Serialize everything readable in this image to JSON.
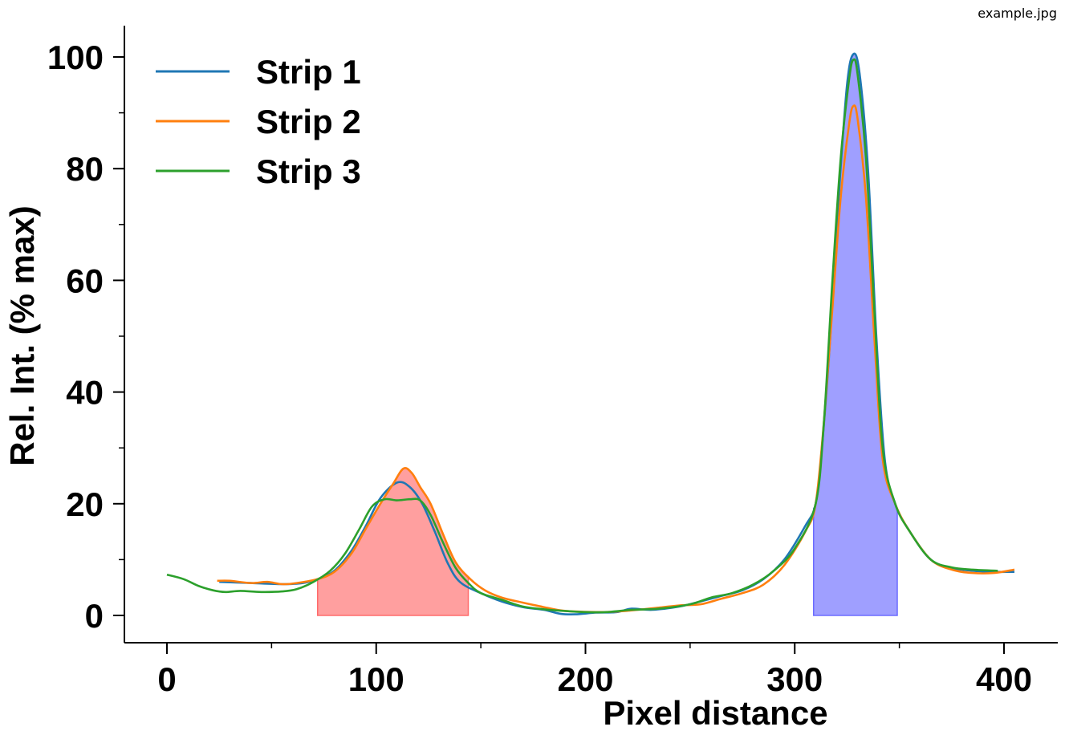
{
  "image_label": "example.jpg",
  "chart_data": {
    "type": "line",
    "xlabel": "Pixel distance",
    "ylabel": "Rel. Int. (% max)",
    "xlim": [
      -20,
      425
    ],
    "ylim": [
      -5,
      106
    ],
    "xticks": [
      0,
      100,
      200,
      300,
      400
    ],
    "xminor_ticks": [
      50,
      150,
      250,
      350
    ],
    "yticks": [
      0,
      20,
      40,
      60,
      80,
      100
    ],
    "yminor_ticks": [
      10,
      30,
      50,
      70,
      90
    ],
    "grid": false,
    "legend_position": "top-left",
    "series": [
      {
        "name": "Strip 1",
        "color": "#1f77b4",
        "points": [
          [
            25,
            6
          ],
          [
            40,
            5.8
          ],
          [
            55,
            5.6
          ],
          [
            65,
            5.8
          ],
          [
            72,
            6.5
          ],
          [
            80,
            8
          ],
          [
            88,
            11.5
          ],
          [
            95,
            16
          ],
          [
            102,
            21
          ],
          [
            110,
            23.8
          ],
          [
            116,
            23
          ],
          [
            122,
            20
          ],
          [
            128,
            15
          ],
          [
            134,
            9.5
          ],
          [
            140,
            6
          ],
          [
            150,
            4
          ],
          [
            160,
            2.5
          ],
          [
            170,
            1.5
          ],
          [
            180,
            1
          ],
          [
            188,
            0.3
          ],
          [
            195,
            0.2
          ],
          [
            205,
            0.5
          ],
          [
            215,
            0.6
          ],
          [
            222,
            1.2
          ],
          [
            232,
            1
          ],
          [
            245,
            1.6
          ],
          [
            255,
            2.5
          ],
          [
            265,
            3.5
          ],
          [
            275,
            4.5
          ],
          [
            285,
            6.5
          ],
          [
            295,
            10
          ],
          [
            305,
            16
          ],
          [
            310,
            20
          ],
          [
            313,
            30
          ],
          [
            317,
            50
          ],
          [
            321,
            75
          ],
          [
            325,
            95
          ],
          [
            328,
            100.5
          ],
          [
            331,
            97
          ],
          [
            335,
            80
          ],
          [
            339,
            50
          ],
          [
            343,
            28
          ],
          [
            348,
            20
          ],
          [
            355,
            15
          ],
          [
            365,
            10
          ],
          [
            375,
            8.5
          ],
          [
            385,
            8
          ],
          [
            395,
            7.8
          ],
          [
            405,
            7.8
          ]
        ]
      },
      {
        "name": "Strip 2",
        "color": "#ff7f0e",
        "points": [
          [
            24,
            6.2
          ],
          [
            30,
            6.2
          ],
          [
            40,
            5.8
          ],
          [
            48,
            6
          ],
          [
            55,
            5.6
          ],
          [
            62,
            5.8
          ],
          [
            72,
            6.5
          ],
          [
            80,
            7.8
          ],
          [
            88,
            11
          ],
          [
            95,
            15.5
          ],
          [
            102,
            20
          ],
          [
            108,
            23.5
          ],
          [
            113,
            26.3
          ],
          [
            117,
            25.5
          ],
          [
            121,
            23
          ],
          [
            126,
            20
          ],
          [
            132,
            14.5
          ],
          [
            138,
            9.5
          ],
          [
            145,
            6.5
          ],
          [
            152,
            4.5
          ],
          [
            160,
            3.2
          ],
          [
            170,
            2.3
          ],
          [
            180,
            1.5
          ],
          [
            188,
            0.9
          ],
          [
            195,
            0.7
          ],
          [
            205,
            0.6
          ],
          [
            215,
            0.7
          ],
          [
            225,
            1
          ],
          [
            235,
            1.4
          ],
          [
            245,
            1.8
          ],
          [
            255,
            2
          ],
          [
            265,
            3
          ],
          [
            275,
            4
          ],
          [
            285,
            5.5
          ],
          [
            295,
            9
          ],
          [
            305,
            15
          ],
          [
            310,
            20
          ],
          [
            314,
            35
          ],
          [
            318,
            55
          ],
          [
            322,
            75
          ],
          [
            326,
            88
          ],
          [
            328,
            91.2
          ],
          [
            330,
            89
          ],
          [
            334,
            75
          ],
          [
            338,
            50
          ],
          [
            342,
            28
          ],
          [
            348,
            20
          ],
          [
            355,
            15
          ],
          [
            365,
            10
          ],
          [
            375,
            8.2
          ],
          [
            385,
            7.6
          ],
          [
            395,
            7.6
          ],
          [
            405,
            8.2
          ]
        ]
      },
      {
        "name": "Strip 3",
        "color": "#2ca02c",
        "points": [
          [
            0,
            7.3
          ],
          [
            8,
            6.5
          ],
          [
            15,
            5.3
          ],
          [
            22,
            4.5
          ],
          [
            28,
            4.2
          ],
          [
            35,
            4.4
          ],
          [
            45,
            4.2
          ],
          [
            55,
            4.3
          ],
          [
            62,
            4.7
          ],
          [
            70,
            6
          ],
          [
            78,
            8
          ],
          [
            85,
            11
          ],
          [
            92,
            15.5
          ],
          [
            98,
            19.5
          ],
          [
            104,
            20.8
          ],
          [
            110,
            20.6
          ],
          [
            116,
            20.8
          ],
          [
            121,
            20.6
          ],
          [
            126,
            18
          ],
          [
            132,
            13
          ],
          [
            138,
            8.5
          ],
          [
            144,
            5.8
          ],
          [
            150,
            4
          ],
          [
            160,
            2.8
          ],
          [
            170,
            1.6
          ],
          [
            180,
            1.1
          ],
          [
            190,
            0.8
          ],
          [
            200,
            0.6
          ],
          [
            210,
            0.6
          ],
          [
            222,
            1
          ],
          [
            235,
            1.2
          ],
          [
            250,
            2
          ],
          [
            260,
            3.2
          ],
          [
            270,
            4
          ],
          [
            280,
            5.5
          ],
          [
            290,
            8
          ],
          [
            300,
            12
          ],
          [
            310,
            20
          ],
          [
            314,
            35
          ],
          [
            318,
            60
          ],
          [
            322,
            82
          ],
          [
            326,
            96
          ],
          [
            328,
            99.5
          ],
          [
            330,
            97
          ],
          [
            334,
            82
          ],
          [
            338,
            55
          ],
          [
            342,
            30
          ],
          [
            348,
            20
          ],
          [
            355,
            15
          ],
          [
            365,
            10
          ],
          [
            375,
            8.6
          ],
          [
            385,
            8.2
          ],
          [
            397,
            8
          ]
        ]
      }
    ],
    "shaded_regions": [
      {
        "x_start": 72,
        "x_end": 144,
        "color": "#ff6b6b",
        "series_outline": "Strip 2"
      },
      {
        "x_start": 309,
        "x_end": 349,
        "color": "#6b6bff",
        "series_outline": "Strip 1"
      }
    ]
  }
}
